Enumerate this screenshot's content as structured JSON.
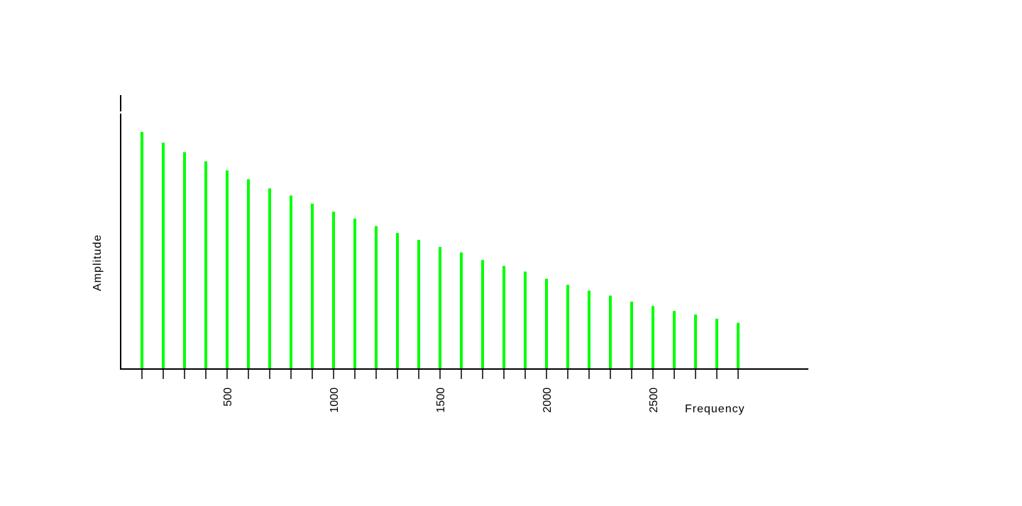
{
  "chart_data": {
    "type": "bar",
    "title": "",
    "xlabel": "Frequency",
    "ylabel": "Amplitude",
    "x": [
      100,
      200,
      300,
      400,
      500,
      600,
      700,
      800,
      900,
      1000,
      1100,
      1200,
      1300,
      1400,
      1500,
      1600,
      1700,
      1800,
      1900,
      2000,
      2100,
      2200,
      2300,
      2400,
      2500,
      2600,
      2700,
      2800,
      2900
    ],
    "values": [
      1.0,
      0.955,
      0.915,
      0.876,
      0.838,
      0.801,
      0.762,
      0.732,
      0.698,
      0.664,
      0.635,
      0.603,
      0.574,
      0.545,
      0.515,
      0.492,
      0.46,
      0.435,
      0.411,
      0.381,
      0.355,
      0.331,
      0.31,
      0.284,
      0.266,
      0.245,
      0.23,
      0.212,
      0.195
    ],
    "xlim": [
      0,
      3200
    ],
    "ylim": [
      0,
      1.12
    ],
    "x_ticks": [
      100,
      200,
      300,
      400,
      500,
      600,
      700,
      800,
      900,
      1000,
      1100,
      1200,
      1300,
      1400,
      1500,
      1600,
      1700,
      1800,
      1900,
      2000,
      2100,
      2200,
      2300,
      2400,
      2500,
      2600,
      2700,
      2800,
      2900
    ],
    "x_tick_labels": [
      {
        "value": 500,
        "text": "500"
      },
      {
        "value": 1000,
        "text": "1000"
      },
      {
        "value": 1500,
        "text": "1500"
      },
      {
        "value": 2000,
        "text": "2000"
      },
      {
        "value": 2500,
        "text": "2500"
      }
    ],
    "grid": false,
    "legend": "none",
    "colors": {
      "bar": "#00ff00",
      "axis": "#000000"
    }
  }
}
